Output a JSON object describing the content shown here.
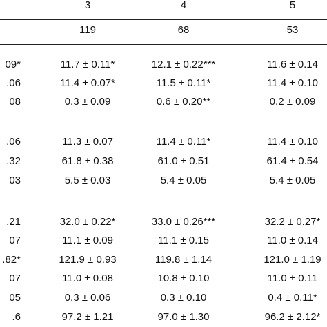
{
  "table": {
    "header": {
      "groups": [
        "3",
        "4",
        "5"
      ],
      "counts": [
        "119",
        "68",
        "53"
      ]
    },
    "rows": [
      {
        "left": "09*",
        "c3": "11.7 ± 0.11*",
        "c4": "12.1 ± 0.22***",
        "c5": "11.6 ± 0.14"
      },
      {
        "left": ".06",
        "c3": "11.4 ± 0.07*",
        "c4": "11.5 ± 0.11*",
        "c5": "11.4 ± 0.10"
      },
      {
        "left": "08",
        "c3": "0.3 ± 0.09",
        "c4": "0.6 ± 0.20**",
        "c5": "0.2 ± 0.09"
      },
      {
        "left": ".06",
        "c3": "11.3 ± 0.07",
        "c4": "11.4 ± 0.11*",
        "c5": "11.4 ± 0.10"
      },
      {
        "left": ".32",
        "c3": "61.8 ± 0.38",
        "c4": "61.0 ± 0.51",
        "c5": "61.4 ± 0.54"
      },
      {
        "left": "03",
        "c3": "5.5 ± 0.03",
        "c4": "5.4 ± 0.05",
        "c5": "5.4 ± 0.05"
      },
      {
        "left": ".21",
        "c3": "32.0 ± 0.22*",
        "c4": "33.0 ± 0.26***",
        "c5": "32.2 ± 0.27*"
      },
      {
        "left": "07",
        "c3": "11.1 ± 0.09",
        "c4": "11.1 ± 0.15",
        "c5": "11.0 ± 0.14"
      },
      {
        "left": ".82*",
        "c3": "121.9 ± 0.93",
        "c4": "119.8 ± 1.14",
        "c5": "121.0 ± 1.19"
      },
      {
        "left": "07",
        "c3": "11.0 ± 0.08",
        "c4": "10.8 ± 0.10",
        "c5": "11.0 ± 0.11"
      },
      {
        "left": "05",
        "c3": "0.3 ± 0.06",
        "c4": "0.3 ± 0.10",
        "c5": "0.4 ± 0.11*"
      },
      {
        "left": ".6",
        "c3": "97.2 ± 1.21",
        "c4": "97.0 ± 1.30",
        "c5": "96.2 ± 2.12*"
      }
    ]
  }
}
